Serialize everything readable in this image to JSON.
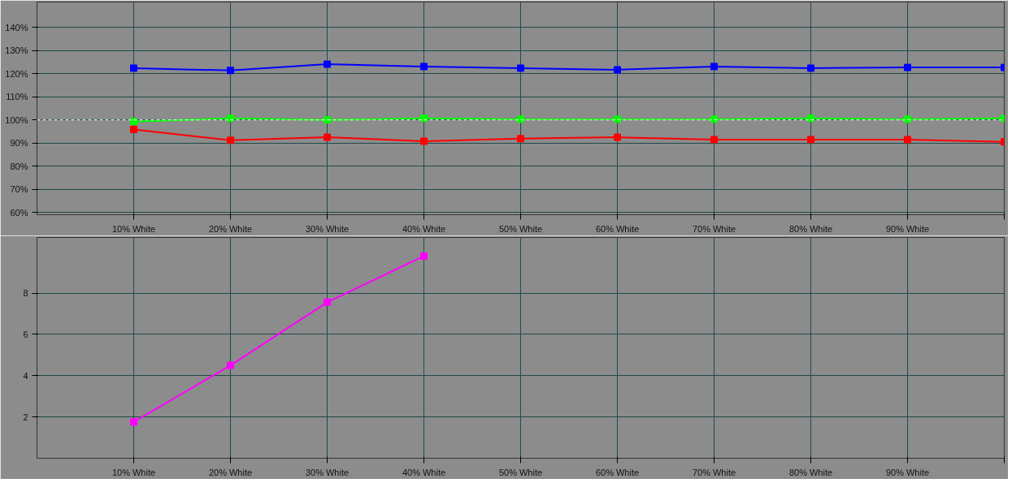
{
  "chart_data": [
    {
      "type": "line",
      "x": [
        10,
        20,
        30,
        40,
        50,
        60,
        70,
        80,
        90,
        100
      ],
      "series": [
        {
          "color": "#0000ff",
          "values": [
            122.4,
            121.4,
            124.1,
            123.1,
            122.4,
            121.7,
            123.1,
            122.4,
            122.7,
            122.7
          ]
        },
        {
          "color": "#00ff00",
          "values": [
            99.3,
            100.7,
            100,
            100.7,
            100.3,
            100.3,
            100.3,
            100.7,
            100.3,
            100.7
          ]
        },
        {
          "color": "#ff0000",
          "values": [
            95.9,
            91.2,
            92.5,
            90.8,
            91.9,
            92.5,
            91.5,
            91.5,
            91.5,
            90.5
          ]
        }
      ],
      "xlim": [
        0,
        100
      ],
      "ylim": [
        59,
        151
      ],
      "xticks": [
        {
          "value": 10,
          "label": "10% White"
        },
        {
          "value": 20,
          "label": "20% White"
        },
        {
          "value": 30,
          "label": "30% White"
        },
        {
          "value": 40,
          "label": "40% White"
        },
        {
          "value": 50,
          "label": "50% White"
        },
        {
          "value": 60,
          "label": "60% White"
        },
        {
          "value": 70,
          "label": "70% White"
        },
        {
          "value": 80,
          "label": "80% White"
        },
        {
          "value": 90,
          "label": "90% White"
        },
        {
          "value": 100,
          "label": null
        }
      ],
      "yticks": [
        {
          "value": 60,
          "label": "60%"
        },
        {
          "value": 70,
          "label": "70%"
        },
        {
          "value": 80,
          "label": "80%"
        },
        {
          "value": 90,
          "label": "90%"
        },
        {
          "value": 100,
          "label": "100%"
        },
        {
          "value": 110,
          "label": "110%"
        },
        {
          "value": 120,
          "label": "120%"
        },
        {
          "value": 130,
          "label": "130%"
        },
        {
          "value": 140,
          "label": "140%"
        }
      ],
      "ref_lines": [
        {
          "axis": "y",
          "value": 100,
          "color": "#ffffff",
          "line_style": "dashed"
        }
      ],
      "grid": true,
      "marker": "square",
      "line_style": "solid"
    },
    {
      "type": "line",
      "x": [
        10,
        20,
        30,
        40
      ],
      "series": [
        {
          "color": "#ff00ff",
          "values": [
            1.76,
            4.5,
            7.56,
            9.8
          ]
        }
      ],
      "xlim": [
        0,
        100
      ],
      "ylim": [
        0,
        10.7
      ],
      "xticks": [
        {
          "value": 10,
          "label": "10% White"
        },
        {
          "value": 20,
          "label": "20% White"
        },
        {
          "value": 30,
          "label": "30% White"
        },
        {
          "value": 40,
          "label": "40% White"
        },
        {
          "value": 50,
          "label": "50% White"
        },
        {
          "value": 60,
          "label": "60% White"
        },
        {
          "value": 70,
          "label": "70% White"
        },
        {
          "value": 80,
          "label": "80% White"
        },
        {
          "value": 90,
          "label": "90% White"
        },
        {
          "value": 100,
          "label": null
        }
      ],
      "yticks": [
        2,
        4,
        6,
        8
      ],
      "grid": true,
      "marker": "square",
      "line_style": "solid"
    }
  ]
}
